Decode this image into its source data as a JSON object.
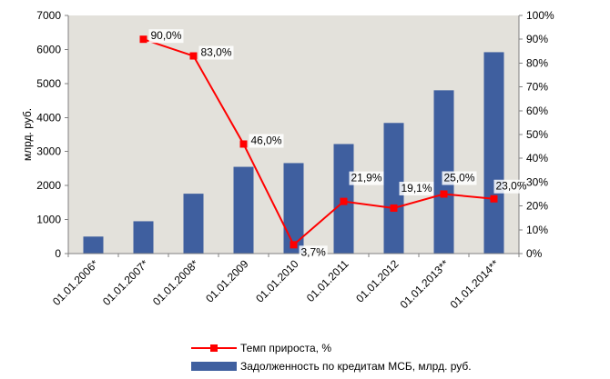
{
  "chart_data": {
    "type": "bar",
    "categories": [
      "01.01.2006*",
      "01.01.2007*",
      "01.01.2008*",
      "01.01.2009",
      "01.01.2010",
      "01.01.2011",
      "01.01.2012",
      "01.01.2013**",
      "01.01.2014**"
    ],
    "series": [
      {
        "name": "Задолженность по кредитам МСБ, млрд. руб.",
        "type": "bar",
        "axis": "left",
        "values": [
          500,
          950,
          1760,
          2550,
          2660,
          3220,
          3840,
          4800,
          5920
        ],
        "color": "#3F5F9F"
      },
      {
        "name": "Темп прироста, %",
        "type": "line",
        "axis": "right",
        "values": [
          null,
          90.0,
          83.0,
          46.0,
          3.7,
          21.9,
          19.1,
          25.0,
          23.0
        ],
        "labels": [
          "",
          "90,0%",
          "83,0%",
          "46,0%",
          "3,7%",
          "21,9%",
          "19,1%",
          "25,0%",
          "23,0%"
        ],
        "color": "#FF0000"
      }
    ],
    "ylabel": "млрд. руб.",
    "ylim": [
      0,
      7000
    ],
    "yticks": [
      "0",
      "1000",
      "2000",
      "3000",
      "4000",
      "5000",
      "6000",
      "7000"
    ],
    "y2lim": [
      0,
      100
    ],
    "y2ticks": [
      "0%",
      "10%",
      "20%",
      "30%",
      "40%",
      "50%",
      "60%",
      "70%",
      "80%",
      "90%",
      "100%"
    ],
    "plot_background": "#E3E1DB",
    "grid": false,
    "legend_position": "bottom"
  }
}
